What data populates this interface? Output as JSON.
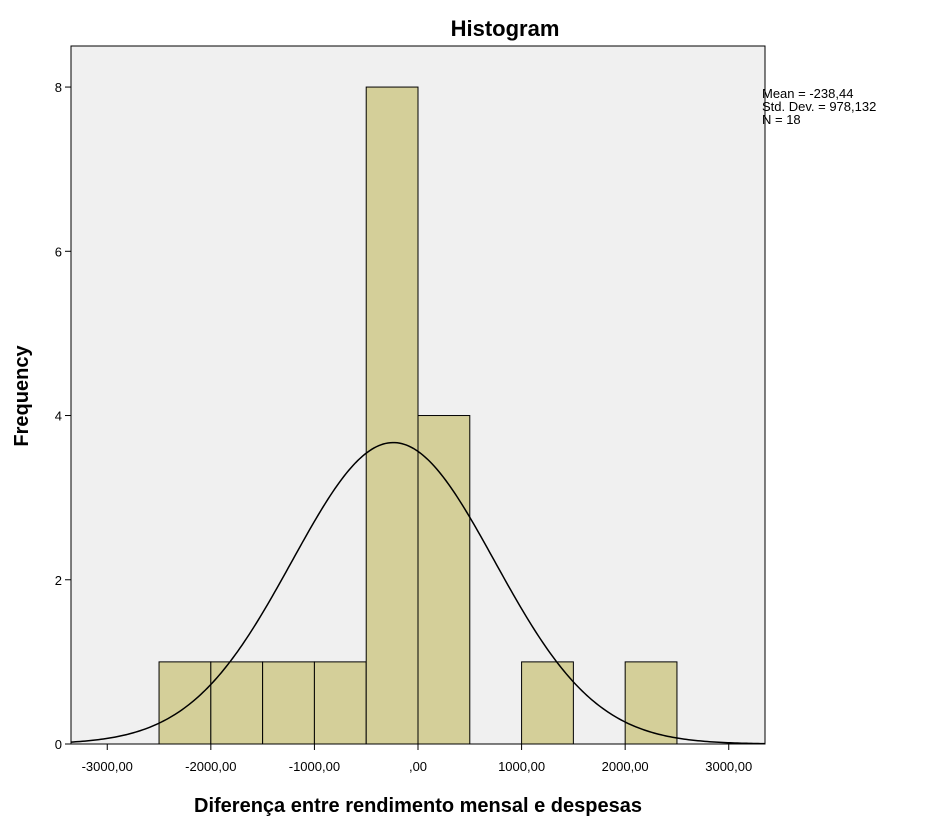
{
  "chart_data": {
    "type": "bar",
    "title": "Histogram",
    "xlabel": "Diferença entre rendimento mensal e despesas",
    "ylabel": "Frequency",
    "xlim": [
      -3350,
      3350
    ],
    "ylim": [
      0,
      8.5
    ],
    "x_ticks": [
      -3000,
      -2000,
      -1000,
      0,
      1000,
      2000,
      3000
    ],
    "x_tick_labels": [
      "-3000,00",
      "-2000,00",
      "-1000,00",
      ",00",
      "1000,00",
      "2000,00",
      "3000,00"
    ],
    "y_ticks": [
      0,
      2,
      4,
      6,
      8
    ],
    "y_tick_labels": [
      "0",
      "2",
      "4",
      "6",
      "8"
    ],
    "bin_width": 500,
    "bins": [
      {
        "start": -2500,
        "end": -2000,
        "count": 1
      },
      {
        "start": -2000,
        "end": -1500,
        "count": 1
      },
      {
        "start": -1500,
        "end": -1000,
        "count": 1
      },
      {
        "start": -1000,
        "end": -500,
        "count": 1
      },
      {
        "start": -500,
        "end": 0,
        "count": 8
      },
      {
        "start": 0,
        "end": 500,
        "count": 4
      },
      {
        "start": 1000,
        "end": 1500,
        "count": 1
      },
      {
        "start": 2000,
        "end": 2500,
        "count": 1
      }
    ],
    "normal_curve": {
      "mean": -238.44,
      "std_dev": 978.132,
      "n": 18
    },
    "stats_labels": [
      "Mean = -238,44",
      "Std. Dev. = 978,132",
      "N = 18"
    ],
    "grid": false,
    "colors": {
      "bar_fill": "#d4cf99",
      "bar_stroke": "#000000",
      "plot_bg": "#f0f0f0",
      "curve": "#000000"
    }
  }
}
